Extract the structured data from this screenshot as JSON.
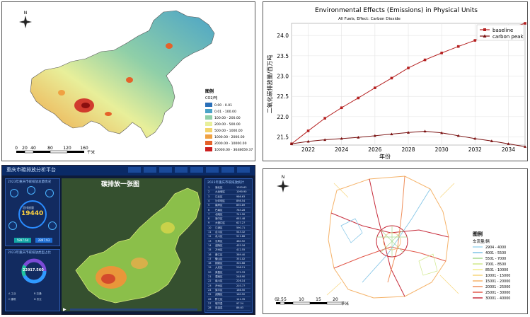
{
  "panel_map": {
    "legend_title": "图例",
    "legend_unit": "CO2/吨",
    "legend_items": [
      {
        "label": "0.00 - 0.01",
        "color": "#2a6fb8"
      },
      {
        "label": "0.01 - 100.00",
        "color": "#4aa3c8"
      },
      {
        "label": "100.00 - 200.00",
        "color": "#8fcfa8"
      },
      {
        "label": "200.00 - 500.00",
        "color": "#e8ef9a"
      },
      {
        "label": "500.00 - 1000.00",
        "color": "#f3d36a"
      },
      {
        "label": "1000.00 - 2000.00",
        "color": "#f0a142"
      },
      {
        "label": "2000.00 - 10000.00",
        "color": "#e5622a"
      },
      {
        "label": "10000.00 - 3648659.37",
        "color": "#cc1f1f"
      }
    ],
    "scale_ticks": [
      "0",
      "20",
      "40",
      "80",
      "120",
      "160"
    ],
    "scale_unit": "千米",
    "north": "N"
  },
  "chart_data": {
    "type": "line",
    "title": "Environmental Effects (Emissions) in Physical Units",
    "subtitle": "All Fuels, Effect: Carbon Dioxide",
    "xlabel": "年份",
    "ylabel": "二氧化碳排放量/百万吨",
    "x": [
      2021,
      2022,
      2023,
      2024,
      2025,
      2026,
      2027,
      2028,
      2029,
      2030,
      2031,
      2032,
      2033,
      2034,
      2035
    ],
    "xticks": [
      "2022",
      "2024",
      "2026",
      "2028",
      "2030",
      "2032",
      "2034"
    ],
    "yticks": [
      "21.5",
      "22.0",
      "22.5",
      "23.0",
      "23.5",
      "24.0"
    ],
    "ylim": [
      21.3,
      24.3
    ],
    "xlim": [
      2021,
      2035
    ],
    "legend_position": "top-right",
    "series": [
      {
        "name": "baseline",
        "color": "#b52020",
        "values": [
          21.33,
          21.65,
          21.96,
          22.22,
          22.46,
          22.71,
          22.95,
          23.2,
          23.4,
          23.57,
          23.73,
          23.88,
          24.02,
          24.17,
          24.3
        ]
      },
      {
        "name": "carbon peak",
        "color": "#7a1010",
        "values": [
          21.33,
          21.39,
          21.43,
          21.46,
          21.49,
          21.53,
          21.57,
          21.61,
          21.64,
          21.6,
          21.53,
          21.46,
          21.4,
          21.33,
          21.26
        ]
      }
    ]
  },
  "dashboard": {
    "title": "重庆市碳排放分析平台",
    "map_title": "碳排放一张图",
    "left_box1_title": "2023年重庆市碳排放总量情况",
    "total_label": "总排放量",
    "total_value": "19440",
    "badge_left": "5897.64",
    "badge_right": "2897.93",
    "left_box2_title": "2023年重庆市碳排放类型占比",
    "donut_value": "22917.560",
    "donut_label": "总排放量",
    "donut_legend": [
      "A 工业",
      "B 交通",
      "C 建筑",
      "D 农业"
    ],
    "right_title": "2023年重庆市碳排放统计",
    "rows": [
      {
        "rank": "1",
        "name": "渝北区",
        "val": "1393.63"
      },
      {
        "rank": "2",
        "name": "九龙坡区",
        "val": "1090.90"
      },
      {
        "rank": "3",
        "name": "江北区",
        "val": "986.63"
      },
      {
        "rank": "4",
        "name": "沙坪坝区",
        "val": "898.54"
      },
      {
        "rank": "5",
        "name": "南岸区",
        "val": "850.89"
      },
      {
        "rank": "6",
        "name": "巴南区",
        "val": "783.28"
      },
      {
        "rank": "7",
        "name": "北碚区",
        "val": "741.90"
      },
      {
        "rank": "8",
        "name": "渝中区",
        "val": "681.48"
      },
      {
        "rank": "9",
        "name": "大渡口区",
        "val": "627.27"
      },
      {
        "rank": "10",
        "name": "江津区",
        "val": "590.71"
      },
      {
        "rank": "11",
        "name": "合川区",
        "val": "543.32"
      },
      {
        "rank": "12",
        "name": "永川区",
        "val": "511.86"
      },
      {
        "rank": "13",
        "name": "长寿区",
        "val": "480.92"
      },
      {
        "rank": "14",
        "name": "涪陵区",
        "val": "455.16"
      },
      {
        "rank": "15",
        "name": "万州区",
        "val": "412.55"
      },
      {
        "rank": "16",
        "name": "綦江区",
        "val": "389.40"
      },
      {
        "rank": "17",
        "name": "璧山区",
        "val": "351.02"
      },
      {
        "rank": "18",
        "name": "铜梁区",
        "val": "320.68"
      },
      {
        "rank": "19",
        "name": "大足区",
        "val": "298.11"
      },
      {
        "rank": "20",
        "name": "荣昌区",
        "val": "275.33"
      },
      {
        "rank": "21",
        "name": "潼南区",
        "val": "248.90"
      },
      {
        "rank": "22",
        "name": "南川区",
        "val": "226.14"
      },
      {
        "rank": "23",
        "name": "开州区",
        "val": "203.77"
      },
      {
        "rank": "24",
        "name": "梁平区",
        "val": "186.50"
      },
      {
        "rank": "25",
        "name": "武隆区",
        "val": "160.92"
      },
      {
        "rank": "26",
        "name": "黔江区",
        "val": "141.35"
      },
      {
        "rank": "27",
        "name": "城口县",
        "val": "97.24"
      },
      {
        "rank": "28",
        "name": "巫溪县",
        "val": "86.63"
      }
    ]
  },
  "panel_traffic": {
    "legend_title": "图例",
    "legend_unit": "车流量/辆",
    "legend_items": [
      {
        "label": "2904 - 4000",
        "color": "#9fd7ef"
      },
      {
        "label": "4001 - 5500",
        "color": "#7ec3e6"
      },
      {
        "label": "5501 - 7000",
        "color": "#a6d98e"
      },
      {
        "label": "7001 - 8500",
        "color": "#cfe88a"
      },
      {
        "label": "8501 - 10000",
        "color": "#f2ec8a"
      },
      {
        "label": "10001 - 15000",
        "color": "#f7d57a"
      },
      {
        "label": "15001 - 20000",
        "color": "#f5b36a"
      },
      {
        "label": "20001 - 25000",
        "color": "#ef8e5a"
      },
      {
        "label": "25001 - 30000",
        "color": "#e2584a"
      },
      {
        "label": "30001 - 40000",
        "color": "#c72d3c"
      }
    ],
    "scale_ticks": [
      "0",
      "2.5",
      "5",
      "10",
      "15",
      "20"
    ],
    "scale_unit": "千米",
    "north": "N"
  }
}
